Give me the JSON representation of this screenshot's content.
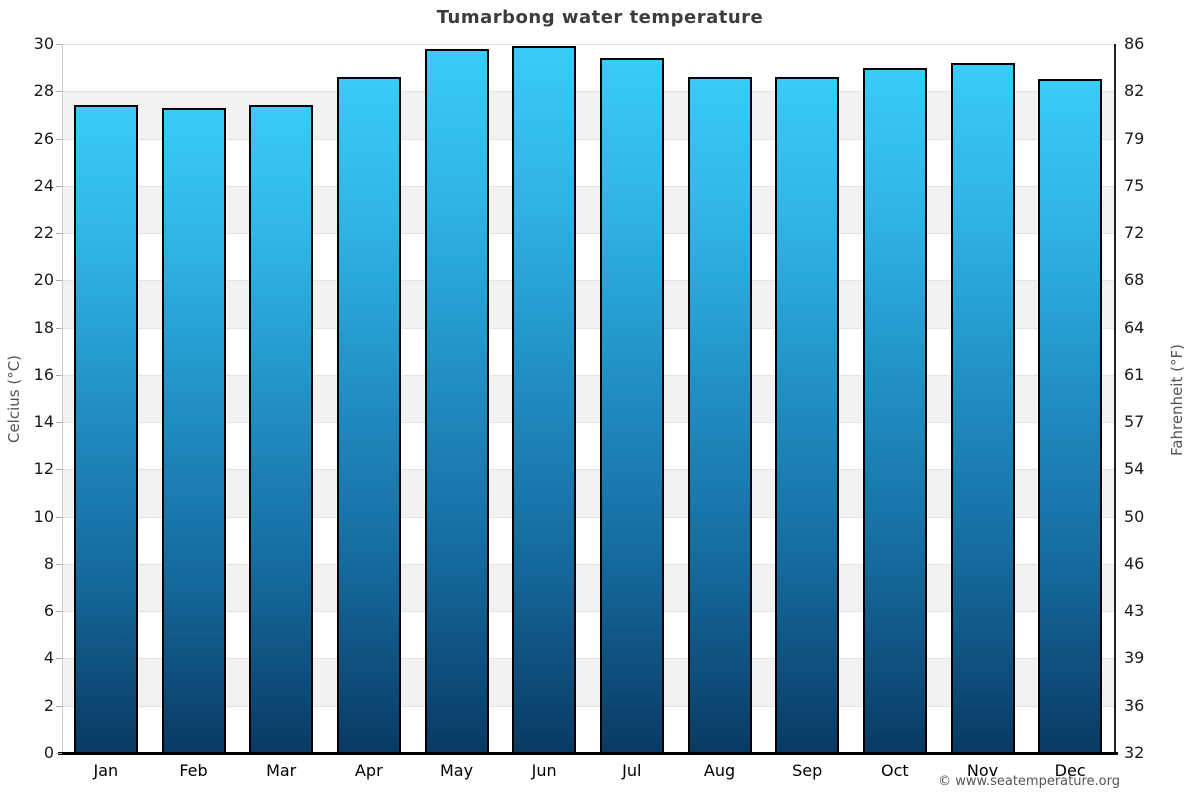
{
  "title": "Tumarbong water temperature",
  "footer": "© www.seatemperature.org",
  "chart_data": {
    "type": "bar",
    "title": "Tumarbong water temperature",
    "categories": [
      "Jan",
      "Feb",
      "Mar",
      "Apr",
      "May",
      "Jun",
      "Jul",
      "Aug",
      "Sep",
      "Oct",
      "Nov",
      "Dec"
    ],
    "values": [
      27.4,
      27.3,
      27.4,
      28.6,
      29.8,
      29.9,
      29.4,
      28.6,
      28.6,
      29.0,
      29.2,
      28.5
    ],
    "unit": "°C",
    "ylabel_left": "Celcius (°C)",
    "ylabel_right": "Fahrenheit (°F)",
    "ylim_celsius": [
      0,
      30
    ],
    "celsius_ticks": [
      30,
      28,
      26,
      24,
      22,
      20,
      18,
      16,
      14,
      12,
      10,
      8,
      6,
      4,
      2,
      0
    ],
    "fahrenheit_tick_labels": [
      "86",
      "82",
      "79",
      "75",
      "72",
      "68",
      "64",
      "61",
      "57",
      "54",
      "50",
      "46",
      "43",
      "39",
      "36",
      "32"
    ],
    "grid": true,
    "legend": "none",
    "colors": {
      "bar_top": "#38ccf8",
      "bar_bottom": "#093a63",
      "bar_border": "#000000",
      "band_gray": "#f2f2f2",
      "gridline": "#e2e2e2",
      "title_text": "#3d3d3d",
      "tick_text": "#1a1a1a",
      "axis_title_text": "#555555"
    }
  }
}
